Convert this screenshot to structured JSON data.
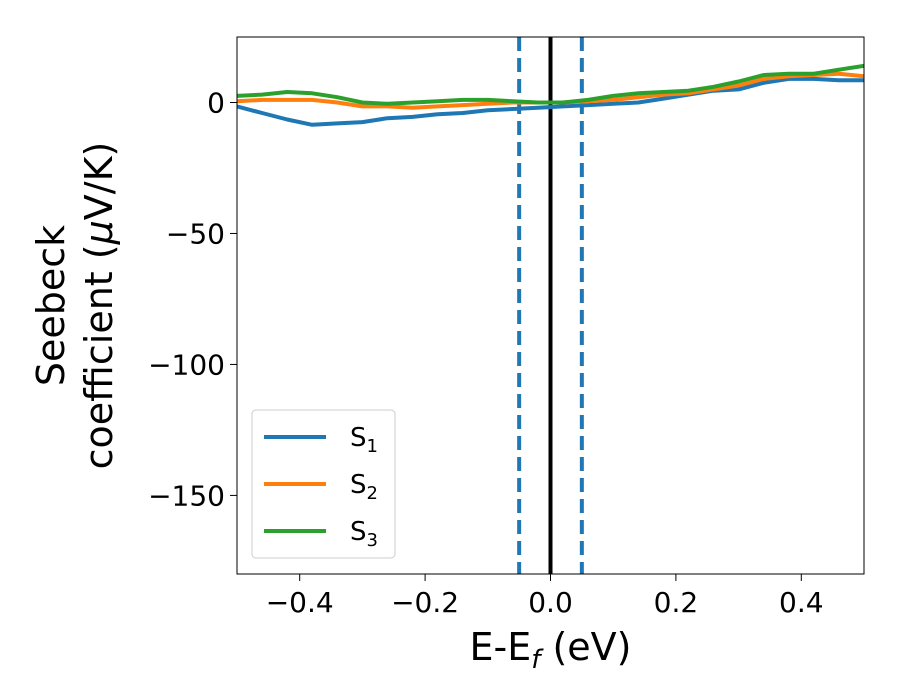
{
  "chart_data": {
    "type": "line",
    "xlabel": "E-E",
    "xlabel_sub": "f",
    "xlabel_unit": " (eV)",
    "ylabel_line1": "Seebeck",
    "ylabel_line2_a": "coefficient  (",
    "ylabel_line2_mu": "μ",
    "ylabel_line2_b": "V/K)",
    "xlim": [
      -0.5,
      0.5
    ],
    "ylim": [
      -180,
      25
    ],
    "xticks": [
      -0.4,
      -0.2,
      0.0,
      0.2,
      0.4
    ],
    "xtick_labels": [
      "−0.4",
      "−0.2",
      "0.0",
      "0.2",
      "0.4"
    ],
    "yticks": [
      0,
      -50,
      -100,
      -150
    ],
    "ytick_labels": [
      "0",
      "−50",
      "−100",
      "−150"
    ],
    "grid": false,
    "legend_position": "lower-left",
    "vertical_lines": [
      {
        "x": -0.05,
        "style": "dashed",
        "color": "#1f77b4"
      },
      {
        "x": 0.0,
        "style": "solid",
        "color": "#000000"
      },
      {
        "x": 0.05,
        "style": "dashed",
        "color": "#1f77b4"
      }
    ],
    "series": [
      {
        "name": "S",
        "sub": "1",
        "color": "#1f77b4",
        "x": [
          -0.5,
          -0.46,
          -0.42,
          -0.38,
          -0.34,
          -0.3,
          -0.26,
          -0.22,
          -0.18,
          -0.14,
          -0.1,
          -0.06,
          -0.02,
          0.02,
          0.06,
          0.1,
          0.14,
          0.18,
          0.22,
          0.26,
          0.3,
          0.34,
          0.38,
          0.42,
          0.46,
          0.5
        ],
        "values": [
          -1.5,
          -4,
          -6.5,
          -8.5,
          -8,
          -7.5,
          -6,
          -5.5,
          -4.5,
          -4,
          -3,
          -2.5,
          -2,
          -1.5,
          -1,
          -0.5,
          0,
          1.5,
          3,
          4.5,
          5,
          7.5,
          9,
          9,
          8.5,
          8.5
        ]
      },
      {
        "name": "S",
        "sub": "2",
        "color": "#ff7f0e",
        "x": [
          -0.5,
          -0.46,
          -0.42,
          -0.38,
          -0.34,
          -0.3,
          -0.26,
          -0.22,
          -0.18,
          -0.14,
          -0.1,
          -0.06,
          -0.02,
          0.02,
          0.06,
          0.1,
          0.14,
          0.18,
          0.22,
          0.26,
          0.3,
          0.34,
          0.38,
          0.42,
          0.46,
          0.5
        ],
        "values": [
          0.5,
          1,
          1,
          1,
          0,
          -1.5,
          -1.5,
          -2,
          -1.5,
          -1,
          -0.5,
          0,
          0,
          0,
          0.5,
          1,
          2,
          3,
          3.5,
          5,
          6.5,
          9,
          10,
          10.5,
          11,
          10
        ]
      },
      {
        "name": "S",
        "sub": "3",
        "color": "#2ca02c",
        "x": [
          -0.5,
          -0.46,
          -0.42,
          -0.38,
          -0.34,
          -0.3,
          -0.26,
          -0.22,
          -0.18,
          -0.14,
          -0.1,
          -0.06,
          -0.02,
          0.02,
          0.06,
          0.1,
          0.14,
          0.18,
          0.22,
          0.26,
          0.3,
          0.34,
          0.38,
          0.42,
          0.46,
          0.5
        ],
        "values": [
          2.5,
          3,
          4,
          3.5,
          2,
          0,
          -0.5,
          0,
          0.5,
          1,
          1,
          0.5,
          0,
          0,
          1,
          2.5,
          3.5,
          4,
          4.5,
          6,
          8,
          10.5,
          11,
          11,
          12.5,
          14
        ]
      }
    ]
  }
}
